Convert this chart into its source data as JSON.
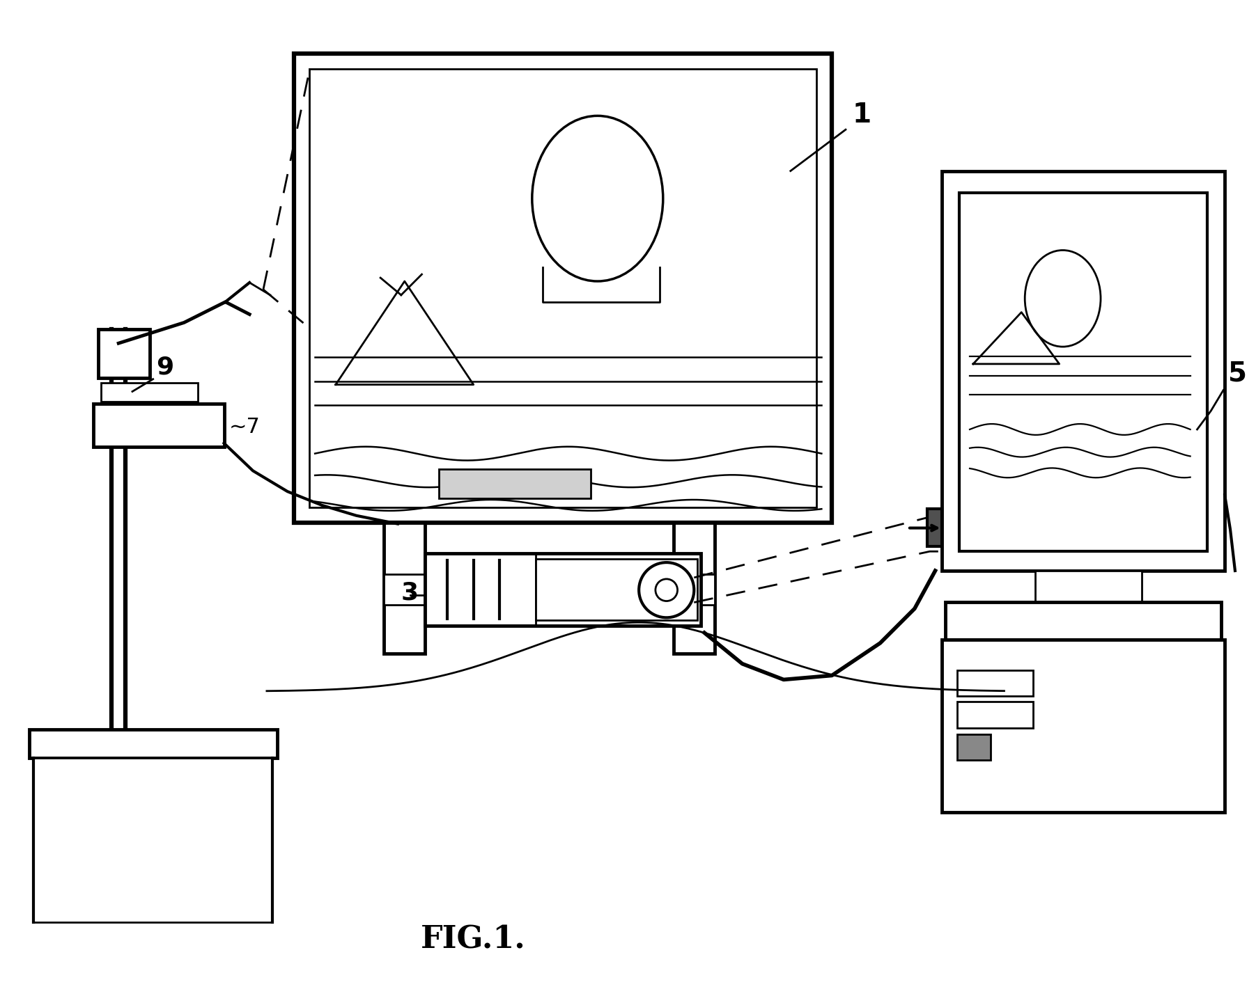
{
  "bg": "#ffffff",
  "lc": "#000000",
  "lw": 2.0,
  "tlw": 3.5,
  "fig_label": "FIG.1.",
  "fig_label_fontsize": 32
}
